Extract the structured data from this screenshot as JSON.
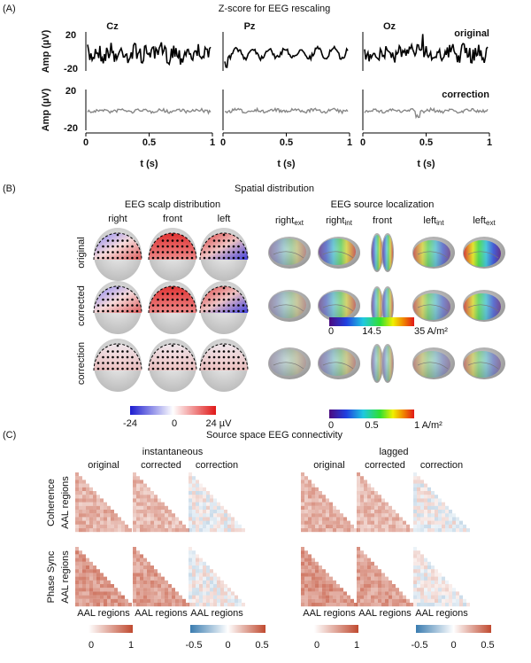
{
  "panel_a": {
    "label": "(A)",
    "title": "Z-score for EEG rescaling",
    "channels": [
      "Cz",
      "Pz",
      "Oz"
    ],
    "original": "original",
    "correction": "correction",
    "y_label": "Amp (µV)",
    "y_ticks": [
      "20",
      "-20"
    ],
    "x_ticks": [
      "0",
      "0.5",
      "1"
    ],
    "x_label": "t (s)"
  },
  "panel_b": {
    "label": "(B)",
    "title": "Spatial distribution",
    "scalp": {
      "title": "EEG scalp distribution",
      "views": [
        "right",
        "front",
        "left"
      ],
      "rows": [
        "original",
        "corrected",
        "correction"
      ],
      "colorbar": [
        "-24",
        "0",
        "24 µV"
      ]
    },
    "source": {
      "title": "EEG source localization",
      "views": [
        {
          "text": "right",
          "sub": "ext"
        },
        {
          "text": "right",
          "sub": "int"
        },
        {
          "text": "front"
        },
        {
          "text": "left",
          "sub": "int"
        },
        {
          "text": "left",
          "sub": "ext"
        }
      ],
      "colorbar_top": [
        "0",
        "14.5",
        "35 A/m²"
      ],
      "colorbar_bottom": [
        "0",
        "0.5",
        "1 A/m²"
      ]
    }
  },
  "panel_c": {
    "label": "(C)",
    "title": "Source space EEG connectivity",
    "groups": [
      "instantaneous",
      "lagged"
    ],
    "columns": [
      "original",
      "corrected",
      "correction"
    ],
    "rows": [
      "Coherence",
      "Phase Sync"
    ],
    "axis_label": "AAL regions",
    "colorbar_abs": [
      "0",
      "1"
    ],
    "colorbar_diff": [
      "-0.5",
      "0",
      "0.5"
    ]
  }
}
